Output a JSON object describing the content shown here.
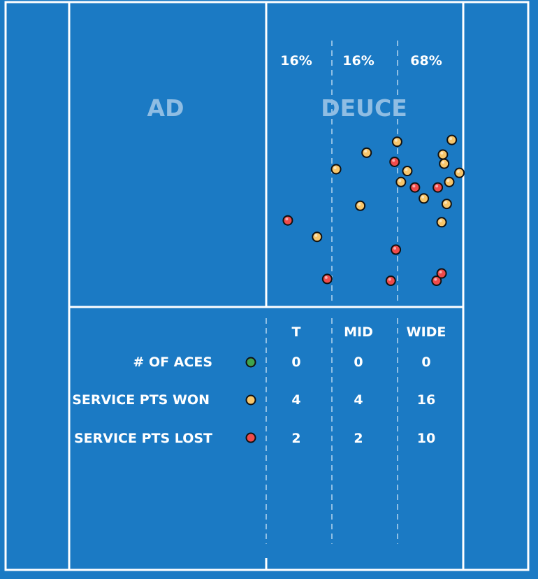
{
  "colors": {
    "court": "#1b7ac4",
    "lines": "#ffffff",
    "box_label": "#8fbde3",
    "ace": "#3fa34d",
    "won": "#f7c66b",
    "lost": "#ef4b4b"
  },
  "court": {
    "ad_label": "AD",
    "deuce_label": "DEUCE"
  },
  "chart_data": {
    "type": "scatter",
    "zones": [
      "T",
      "MID",
      "WIDE"
    ],
    "zone_percentages": [
      "16%",
      "16%",
      "68%"
    ],
    "legend_rows": [
      {
        "label": "# OF ACES",
        "marker": "ace",
        "values": [
          "0",
          "0",
          "0"
        ]
      },
      {
        "label": "SERVICE PTS WON",
        "marker": "won",
        "values": [
          "4",
          "4",
          "16"
        ]
      },
      {
        "label": "SERVICE PTS LOST",
        "marker": "lost",
        "values": [
          "2",
          "2",
          "10"
        ]
      }
    ],
    "points": [
      {
        "x": 0.55,
        "y": 0.34,
        "result": "won"
      },
      {
        "x": 0.17,
        "y": 0.62,
        "result": "lost"
      },
      {
        "x": 0.4,
        "y": 0.71,
        "result": "won"
      },
      {
        "x": 0.48,
        "y": 0.94,
        "result": "lost"
      },
      {
        "x": 0.74,
        "y": 0.54,
        "result": "won"
      },
      {
        "x": 0.79,
        "y": 0.25,
        "result": "won"
      },
      {
        "x": 0.98,
        "y": 0.95,
        "result": "lost"
      },
      {
        "x": 1.02,
        "y": 0.78,
        "result": "lost"
      },
      {
        "x": 1.06,
        "y": 0.41,
        "result": "won"
      },
      {
        "x": 1.01,
        "y": 0.3,
        "result": "lost"
      },
      {
        "x": 1.03,
        "y": 0.19,
        "result": "won"
      },
      {
        "x": 1.11,
        "y": 0.35,
        "result": "won"
      },
      {
        "x": 1.17,
        "y": 0.44,
        "result": "lost"
      },
      {
        "x": 1.24,
        "y": 0.5,
        "result": "won"
      },
      {
        "x": 1.34,
        "y": 0.95,
        "result": "lost"
      },
      {
        "x": 1.38,
        "y": 0.91,
        "result": "lost"
      },
      {
        "x": 1.38,
        "y": 0.63,
        "result": "won"
      },
      {
        "x": 1.42,
        "y": 0.53,
        "result": "won"
      },
      {
        "x": 1.35,
        "y": 0.44,
        "result": "lost"
      },
      {
        "x": 1.4,
        "y": 0.31,
        "result": "won"
      },
      {
        "x": 1.44,
        "y": 0.41,
        "result": "won"
      },
      {
        "x": 1.39,
        "y": 0.26,
        "result": "won"
      },
      {
        "x": 1.46,
        "y": 0.18,
        "result": "won"
      },
      {
        "x": 1.52,
        "y": 0.36,
        "result": "won"
      }
    ]
  }
}
